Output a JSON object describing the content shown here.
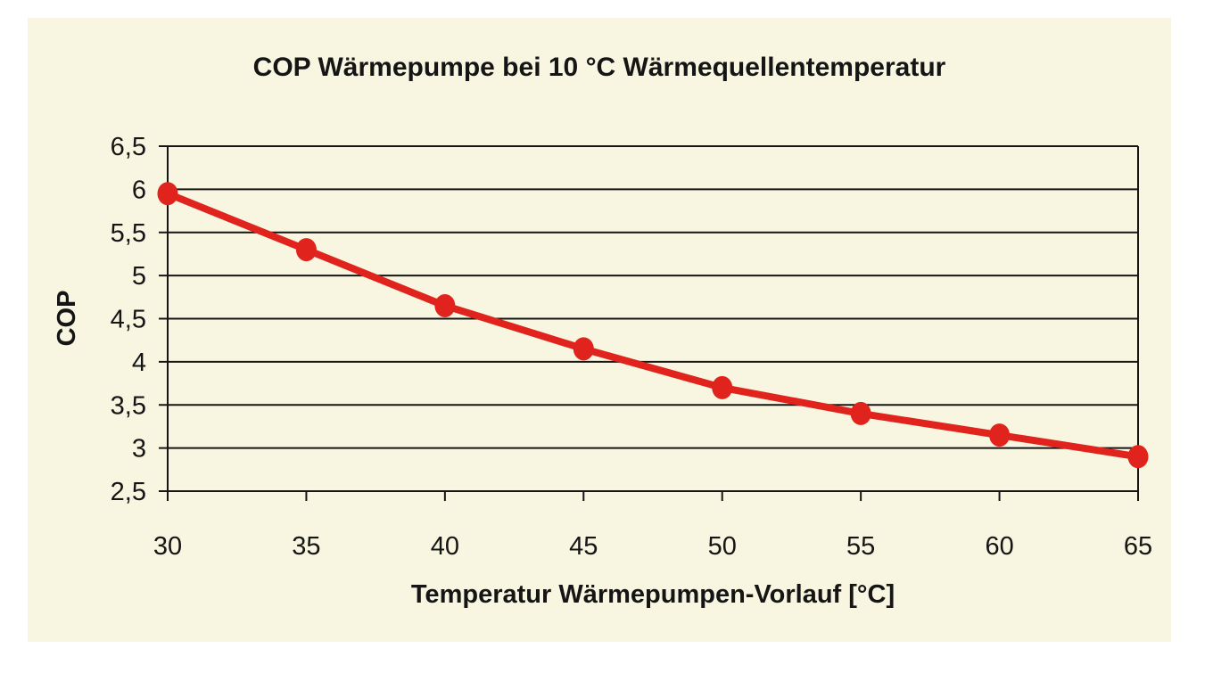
{
  "chart_data": {
    "type": "line",
    "title": "COP Wärmepumpe bei 10 °C Wärmequellentemperatur",
    "xlabel": "Temperatur Wärmepumpen-Vorlauf [°C]",
    "ylabel": "COP",
    "x": [
      30,
      35,
      40,
      45,
      50,
      55,
      60,
      65
    ],
    "values": [
      5.95,
      5.3,
      4.65,
      4.15,
      3.7,
      3.4,
      3.15,
      2.9
    ],
    "x_tick_labels": [
      "30",
      "35",
      "40",
      "45",
      "50",
      "55",
      "60",
      "65"
    ],
    "y_tick_labels": [
      "6,5",
      "6",
      "5,5",
      "5",
      "4,5",
      "4",
      "3,5",
      "3",
      "2,5"
    ],
    "xlim": [
      30,
      65
    ],
    "ylim": [
      2.5,
      6.5
    ],
    "y_step": 0.5,
    "grid": "horizontal",
    "legend": "none"
  },
  "colors": {
    "page_background": "#ffffff",
    "panel_background": "#f8f6e0",
    "line": "#e0231c",
    "marker": "#e0231c",
    "axis": "#151515",
    "text": "#151515"
  }
}
